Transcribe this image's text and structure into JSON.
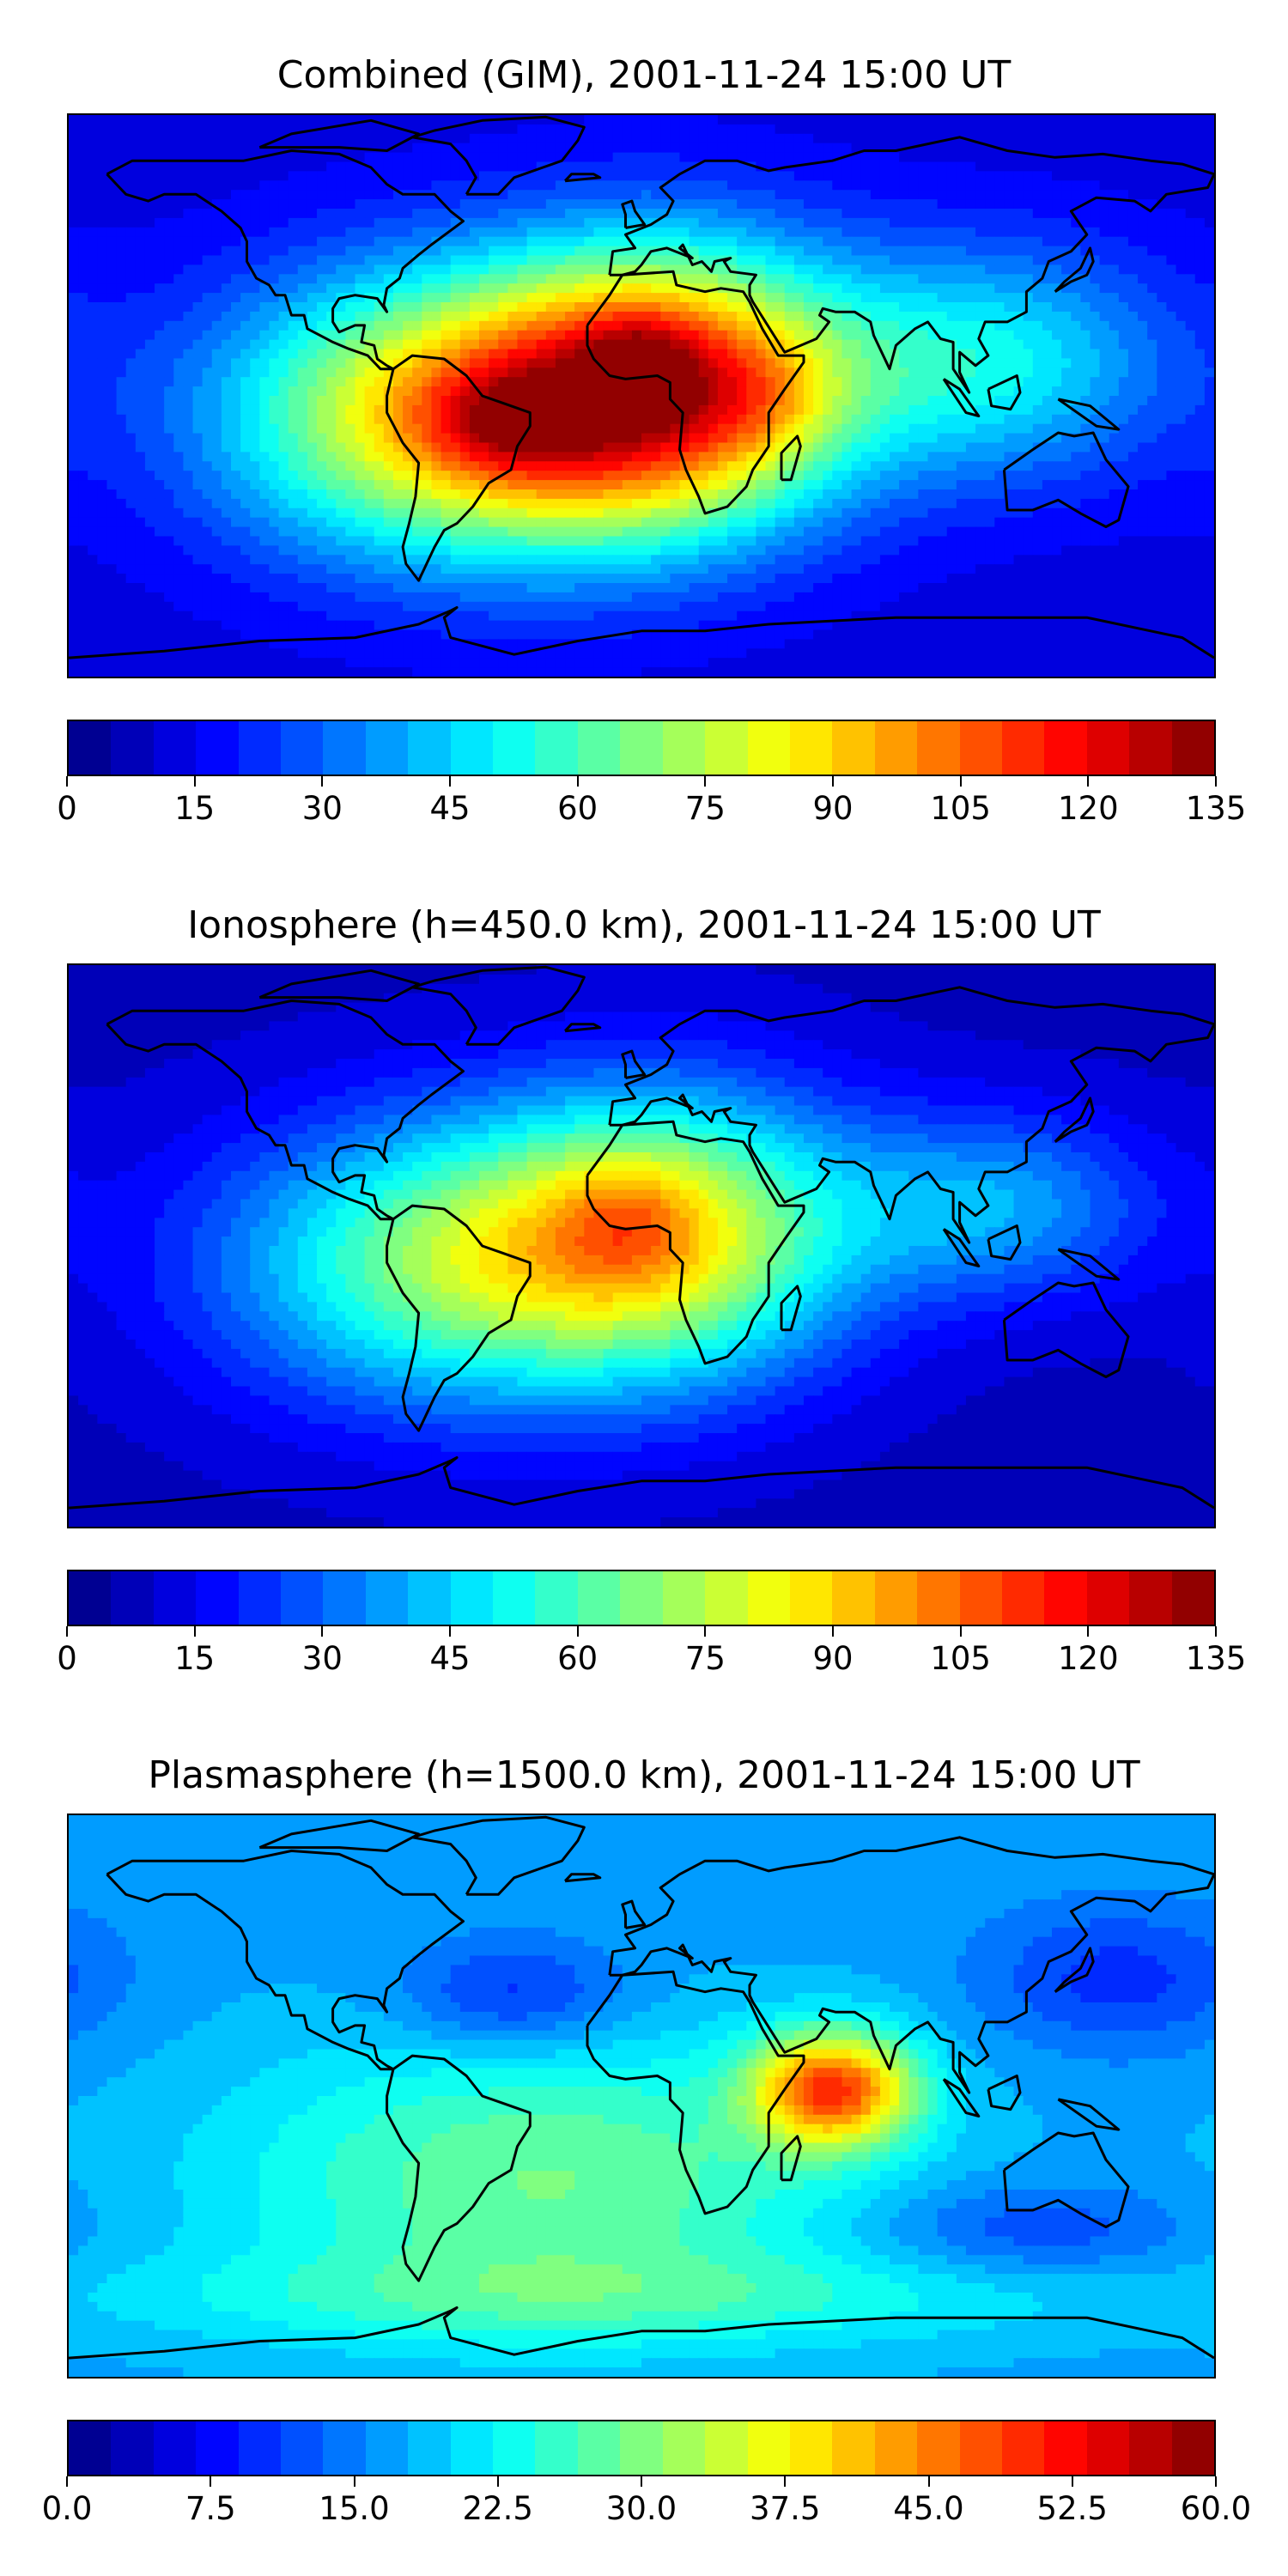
{
  "panels": [
    {
      "title": "Combined (GIM), 2001-11-24 15:00 UT",
      "colorbar": {
        "min": 0,
        "max": 135,
        "ticks": [
          "0",
          "15",
          "30",
          "45",
          "60",
          "75",
          "90",
          "105",
          "120",
          "135"
        ]
      },
      "field": {
        "background": 12,
        "blobs": [
          {
            "lon": -60,
            "lat": -5,
            "sx": 52,
            "sy": 30,
            "amp": 70
          },
          {
            "lon": -40,
            "lat": -8,
            "sx": 18,
            "sy": 10,
            "amp": 18
          },
          {
            "lon": 10,
            "lat": 5,
            "sx": 40,
            "sy": 30,
            "amp": 75
          },
          {
            "lon": 0,
            "lat": 10,
            "sx": 12,
            "sy": 10,
            "amp": 18
          },
          {
            "lon": 38,
            "lat": 0,
            "sx": 16,
            "sy": 14,
            "amp": 12
          },
          {
            "lon": 110,
            "lat": 10,
            "sx": 40,
            "sy": 25,
            "amp": 38
          },
          {
            "lon": -20,
            "lat": -10,
            "sx": 50,
            "sy": 28,
            "amp": 20
          }
        ]
      }
    },
    {
      "title": "Ionosphere  (h=450.0 km), 2001-11-24 15:00 UT",
      "colorbar": {
        "min": 0,
        "max": 135,
        "ticks": [
          "0",
          "15",
          "30",
          "45",
          "60",
          "75",
          "90",
          "105",
          "120",
          "135"
        ]
      },
      "field": {
        "background": 8,
        "blobs": [
          {
            "lon": -55,
            "lat": -5,
            "sx": 55,
            "sy": 30,
            "amp": 58
          },
          {
            "lon": 10,
            "lat": 5,
            "sx": 42,
            "sy": 30,
            "amp": 58
          },
          {
            "lon": -5,
            "lat": 8,
            "sx": 14,
            "sy": 12,
            "amp": 12
          },
          {
            "lon": 112,
            "lat": 12,
            "sx": 35,
            "sy": 20,
            "amp": 30
          }
        ]
      }
    },
    {
      "title": "Plasmasphere (h=1500.0 km), 2001-11-24 15:00 UT",
      "colorbar": {
        "min": 0,
        "max": 60,
        "ticks": [
          "0.0",
          "7.5",
          "15.0",
          "22.5",
          "30.0",
          "37.5",
          "45.0",
          "52.5",
          "60.0"
        ]
      },
      "field": {
        "background": 17,
        "blobs": [
          {
            "lon": 60,
            "lat": 2,
            "sx": 18,
            "sy": 12,
            "amp": 30
          },
          {
            "lon": -30,
            "lat": -25,
            "sx": 70,
            "sy": 30,
            "amp": 12
          },
          {
            "lon": -10,
            "lat": -60,
            "sx": 120,
            "sy": 10,
            "amp": 6
          },
          {
            "lon": -40,
            "lat": 30,
            "sx": 25,
            "sy": 12,
            "amp": -8
          },
          {
            "lon": 150,
            "lat": 35,
            "sx": 30,
            "sy": 15,
            "amp": -7
          },
          {
            "lon": 120,
            "lat": -40,
            "sx": 35,
            "sy": 10,
            "amp": -6
          }
        ]
      }
    }
  ]
}
